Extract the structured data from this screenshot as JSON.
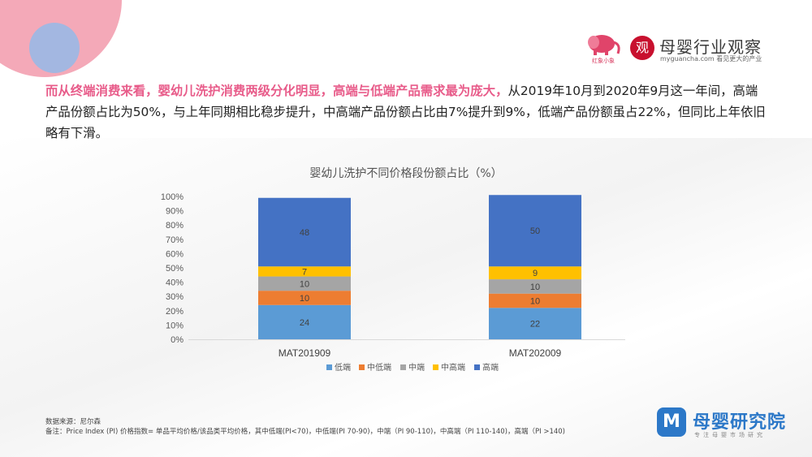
{
  "logos": {
    "elephant_caption": "红象小象",
    "guancha_seal": "观",
    "guancha_title": "母婴行业观察",
    "guancha_subtitle": "myguancha.com 看见更大的产业"
  },
  "intro": {
    "highlight": "而从终端消费来看，婴幼儿洗护消费两级分化明显，高端与低端产品需求最为庞大，",
    "body": "从2019年10月到2020年9月这一年间，高端产品份额占比为50%，与上年同期相比稳步提升，中高端产品份额占比由7%提升到9%，低端产品份额虽占22%，但同比上年依旧略有下滑。"
  },
  "chart_data": {
    "type": "bar",
    "stacked": true,
    "title": "婴幼儿洗护不同价格段份额占比（%）",
    "categories": [
      "MAT201909",
      "MAT202009"
    ],
    "series": [
      {
        "name": "低端",
        "values": [
          24,
          22
        ],
        "color": "#5b9bd5"
      },
      {
        "name": "中低端",
        "values": [
          10,
          10
        ],
        "color": "#ed7d31"
      },
      {
        "name": "中端",
        "values": [
          10,
          10
        ],
        "color": "#a5a5a5"
      },
      {
        "name": "中高端",
        "values": [
          7,
          9
        ],
        "color": "#ffc000"
      },
      {
        "name": "高端",
        "values": [
          48,
          50
        ],
        "color": "#4472c4"
      }
    ],
    "yticks": [
      "0%",
      "10%",
      "20%",
      "30%",
      "40%",
      "50%",
      "60%",
      "70%",
      "80%",
      "90%",
      "100%"
    ],
    "ylim": [
      0,
      100
    ],
    "grid": false,
    "legend": "bottom"
  },
  "source": {
    "line1": "数据来源：尼尔森",
    "line2": "备注：Price Index (PI) 价格指数= 单品平均价格/该品类平均价格，其中低端(PI<70)，中低端(PI 70-90)，中端（PI 90-110)，中高端（PI 110-140)，高端（PI >140)"
  },
  "institute": {
    "icon": "M",
    "name": "母婴研究院",
    "subtitle": "专注母婴市场研究"
  }
}
